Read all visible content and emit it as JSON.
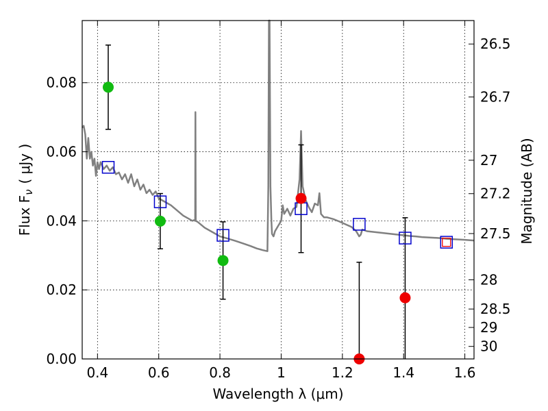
{
  "chart_data": {
    "type": "scatter",
    "title": "",
    "xlabel": "Wavelength  λ (μm)",
    "ylabel_left": "Flux  F",
    "ylabel_left_subscript": "ν",
    "ylabel_left_units": "( μJy )",
    "ylabel_right": "Magnitude (AB)",
    "xlim": [
      0.35,
      1.63
    ],
    "ylim": [
      0.0,
      0.098
    ],
    "grid": true,
    "x_ticks": [
      0.4,
      0.6,
      0.8,
      1.0,
      1.2,
      1.4,
      1.6
    ],
    "x_tick_labels": [
      "0.4",
      "0.6",
      "0.8",
      "1",
      "1.2",
      "1.4",
      "1.6"
    ],
    "y_ticks": [
      0.0,
      0.02,
      0.04,
      0.06,
      0.08
    ],
    "y_tick_labels": [
      "0.00",
      "0.02",
      "0.04",
      "0.06",
      "0.08"
    ],
    "right_axis_ticks": [
      {
        "label": "26.5",
        "mag": 26.5
      },
      {
        "label": "26.7",
        "mag": 26.7
      },
      {
        "label": "27",
        "mag": 27.0
      },
      {
        "label": "27.2",
        "mag": 27.2
      },
      {
        "label": "27.5",
        "mag": 27.5
      },
      {
        "label": "28",
        "mag": 28.0
      },
      {
        "label": "28.5",
        "mag": 28.5
      },
      {
        "label": "29",
        "mag": 29.0
      },
      {
        "label": "30",
        "mag": 30.0
      }
    ],
    "model_spectrum": {
      "color": "#808080",
      "x": [
        0.35,
        0.355,
        0.36,
        0.365,
        0.37,
        0.375,
        0.38,
        0.385,
        0.39,
        0.395,
        0.4,
        0.405,
        0.41,
        0.42,
        0.43,
        0.44,
        0.45,
        0.46,
        0.47,
        0.48,
        0.49,
        0.5,
        0.51,
        0.52,
        0.53,
        0.54,
        0.55,
        0.56,
        0.57,
        0.58,
        0.59,
        0.6,
        0.62,
        0.64,
        0.66,
        0.68,
        0.7,
        0.71,
        0.715,
        0.719,
        0.72,
        0.721,
        0.725,
        0.73,
        0.75,
        0.78,
        0.8,
        0.82,
        0.85,
        0.88,
        0.9,
        0.92,
        0.94,
        0.95,
        0.955,
        0.958,
        0.96,
        0.962,
        0.965,
        0.968,
        0.97,
        0.975,
        0.98,
        0.99,
        1.0,
        1.005,
        1.01,
        1.02,
        1.03,
        1.04,
        1.05,
        1.06,
        1.065,
        1.07,
        1.08,
        1.09,
        1.1,
        1.11,
        1.12,
        1.125,
        1.13,
        1.14,
        1.15,
        1.17,
        1.19,
        1.21,
        1.23,
        1.245,
        1.255,
        1.26,
        1.265,
        1.28,
        1.3,
        1.32,
        1.34,
        1.36,
        1.38,
        1.4,
        1.42,
        1.44,
        1.46,
        1.48,
        1.5,
        1.52,
        1.54,
        1.56,
        1.58,
        1.6,
        1.63
      ],
      "y": [
        0.067,
        0.0675,
        0.065,
        0.058,
        0.064,
        0.058,
        0.06,
        0.056,
        0.058,
        0.053,
        0.057,
        0.055,
        0.057,
        0.055,
        0.056,
        0.0545,
        0.0555,
        0.0535,
        0.054,
        0.052,
        0.0535,
        0.051,
        0.0535,
        0.05,
        0.052,
        0.049,
        0.0505,
        0.048,
        0.049,
        0.0475,
        0.0485,
        0.0465,
        0.0455,
        0.0445,
        0.043,
        0.0415,
        0.0405,
        0.04,
        0.0402,
        0.04,
        0.0715,
        0.04,
        0.0398,
        0.0395,
        0.038,
        0.0365,
        0.0355,
        0.035,
        0.0342,
        0.0333,
        0.0327,
        0.032,
        0.0315,
        0.0313,
        0.0312,
        0.05,
        0.098,
        0.098,
        0.05,
        0.04,
        0.0362,
        0.0355,
        0.037,
        0.0385,
        0.04,
        0.0445,
        0.042,
        0.0435,
        0.0415,
        0.0435,
        0.044,
        0.052,
        0.066,
        0.05,
        0.046,
        0.044,
        0.0425,
        0.045,
        0.0445,
        0.048,
        0.042,
        0.041,
        0.041,
        0.0405,
        0.0398,
        0.039,
        0.0382,
        0.037,
        0.0355,
        0.036,
        0.0375,
        0.037,
        0.0368,
        0.0366,
        0.0364,
        0.0362,
        0.036,
        0.0358,
        0.0356,
        0.0355,
        0.0353,
        0.0352,
        0.0351,
        0.035,
        0.0348,
        0.0347,
        0.0346,
        0.0345,
        0.0343
      ]
    },
    "model_photometry": {
      "marker": "open-square",
      "color": "#0000cc",
      "x": [
        0.435,
        0.605,
        0.81,
        1.065,
        1.255,
        1.405,
        1.54
      ],
      "y": [
        0.0555,
        0.0455,
        0.0358,
        0.0435,
        0.039,
        0.035,
        0.0338
      ]
    },
    "extra_marker": {
      "marker": "open-square",
      "color": "#ee0000",
      "x": 1.54,
      "y": 0.0338
    },
    "observed_green": {
      "marker": "filled-circle",
      "color": "#11bb11",
      "points": [
        {
          "x": 0.435,
          "y": 0.0787,
          "yerr": 0.0122
        },
        {
          "x": 0.605,
          "y": 0.0399,
          "yerr": 0.008
        },
        {
          "x": 0.81,
          "y": 0.0285,
          "yerr": 0.0112
        }
      ]
    },
    "observed_red": {
      "marker": "filled-circle",
      "color": "#ee0000",
      "points": [
        {
          "x": 1.065,
          "y": 0.0465,
          "yerr_up": 0.0155,
          "yerr_down": 0.0157
        },
        {
          "x": 1.255,
          "y": 0.0,
          "yerr_up": 0.028,
          "yerr_down": 0.0
        },
        {
          "x": 1.405,
          "y": 0.0177,
          "yerr_up": 0.0232,
          "yerr_down": 0.0177
        }
      ]
    }
  }
}
